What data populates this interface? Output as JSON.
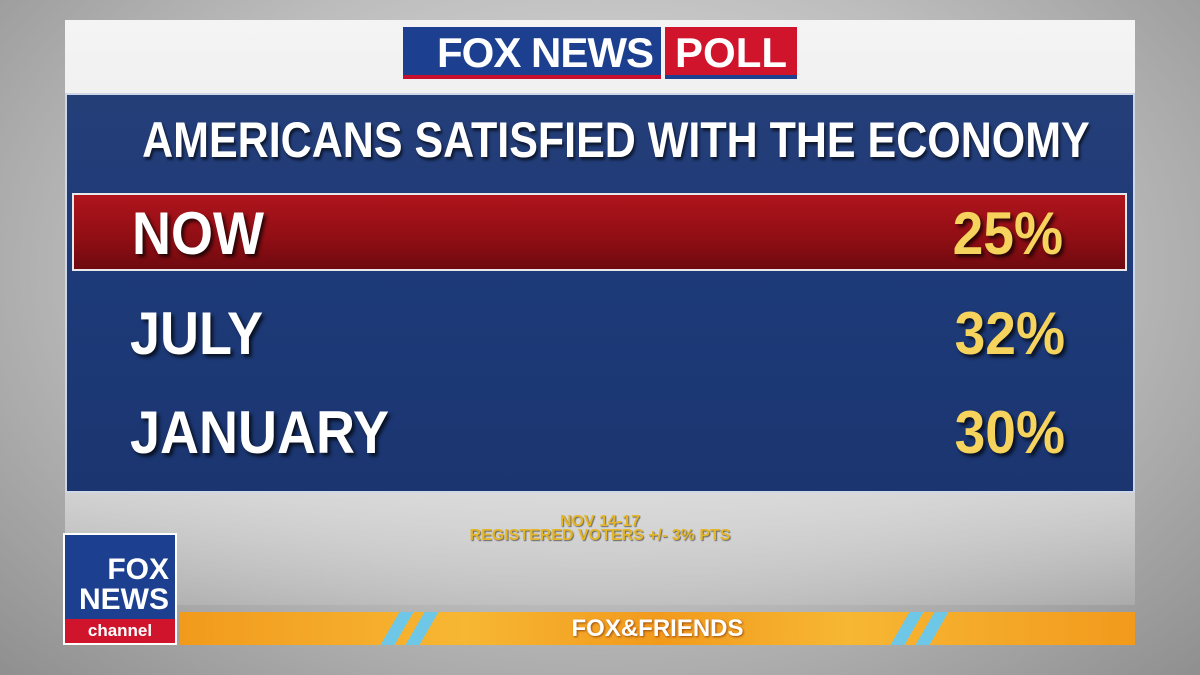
{
  "header": {
    "brand": "FOX NEWS",
    "badge": "POLL"
  },
  "title": "AMERICANS SATISFIED WITH THE ECONOMY",
  "table": {
    "rows": [
      [
        "NOW",
        "25%"
      ],
      [
        "JULY",
        "32%"
      ],
      [
        "JANUARY",
        "30%"
      ]
    ]
  },
  "footnote": [
    "NOV 14-17",
    "REGISTERED VOTERS +/- 3% PTS"
  ],
  "logo": {
    "line1": "FOX",
    "line2": "NEWS",
    "line3": "channel"
  },
  "banner": "FOX&FRIENDS"
}
